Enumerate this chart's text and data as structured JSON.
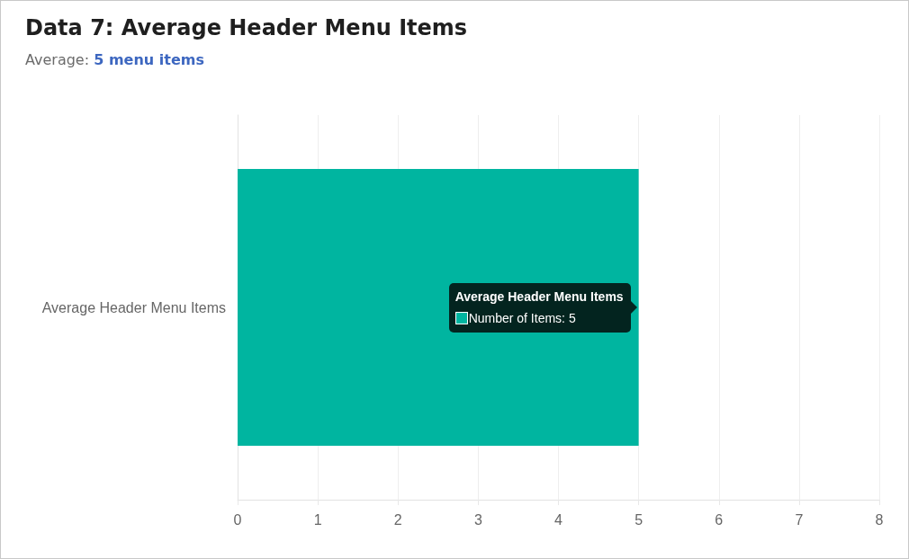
{
  "chart_data": {
    "type": "bar",
    "orientation": "horizontal",
    "title": "Data 7: Average Header Menu Items",
    "subtitle": "Average: 5 menu items",
    "categories": [
      "Average Header Menu Items"
    ],
    "series": [
      {
        "name": "Number of Items",
        "color": "#00b5a0",
        "values": [
          5
        ],
        "value_labels": [
          ": 5"
        ]
      }
    ],
    "xlim": [
      0,
      8
    ],
    "xticks": [
      0,
      1,
      2,
      3,
      4,
      5,
      6,
      7,
      8
    ],
    "grid": "x"
  }
}
